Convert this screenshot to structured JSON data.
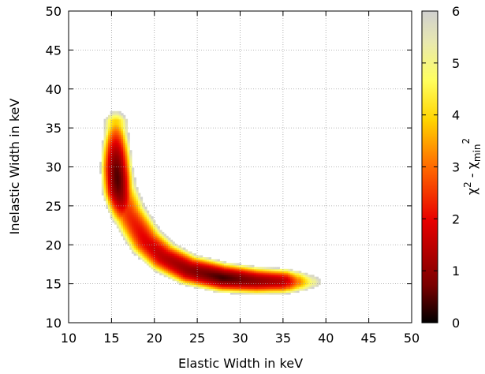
{
  "chart_data": {
    "type": "heatmap",
    "title": "",
    "xlabel": "Elastic Width in keV",
    "ylabel": "Inelastic Width in keV",
    "xlim": [
      10,
      50
    ],
    "ylim": [
      10,
      50
    ],
    "xticks": [
      10,
      15,
      20,
      25,
      30,
      35,
      40,
      45,
      50
    ],
    "yticks": [
      10,
      15,
      20,
      25,
      30,
      35,
      40,
      45,
      50
    ],
    "xtick_labels": [
      "10",
      "15",
      "20",
      "25",
      "30",
      "35",
      "40",
      "45",
      "50"
    ],
    "ytick_labels": [
      "10",
      "15",
      "20",
      "25",
      "30",
      "35",
      "40",
      "45",
      "50"
    ],
    "grid": true,
    "colorbar": {
      "label_base": "χ",
      "label_sup1": "2",
      "label_mid": " - χ",
      "label_sub": "min",
      "label_sup2": "2",
      "range": [
        0,
        6
      ],
      "ticks": [
        0,
        1,
        2,
        3,
        4,
        5,
        6
      ],
      "tick_labels": [
        "0",
        "1",
        "2",
        "3",
        "4",
        "5",
        "6"
      ],
      "colormap": "hot (black-red-orange-yellow-white)",
      "color_stops": [
        "#000000",
        "#7a0000",
        "#e80000",
        "#ff6a00",
        "#ffd400",
        "#ffff60",
        "#e8e8b0",
        "#d0d0d0"
      ]
    },
    "minimum": {
      "x": 28,
      "y": 15.8
    },
    "valley_center_curve": [
      {
        "x": 15.5,
        "y": 38
      },
      {
        "x": 15.5,
        "y": 36
      },
      {
        "x": 15.5,
        "y": 33
      },
      {
        "x": 15.6,
        "y": 30
      },
      {
        "x": 16.0,
        "y": 27
      },
      {
        "x": 17.0,
        "y": 24
      },
      {
        "x": 19.0,
        "y": 20.5
      },
      {
        "x": 21.0,
        "y": 18.5
      },
      {
        "x": 24.0,
        "y": 16.8
      },
      {
        "x": 28.0,
        "y": 15.8
      },
      {
        "x": 32.0,
        "y": 15.4
      },
      {
        "x": 36.0,
        "y": 15.3
      },
      {
        "x": 39.5,
        "y": 15.2
      }
    ]
  }
}
